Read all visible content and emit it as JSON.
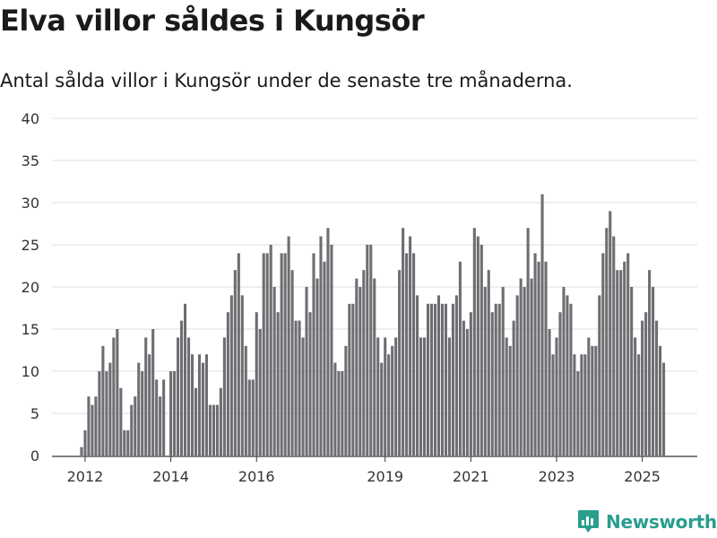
{
  "title": "Elva villor såldes i Kungsör",
  "subtitle": "Antal sålda villor i Kungsör under de senaste tre månaderna.",
  "brand": "Newsworthy",
  "chart_data": {
    "type": "bar",
    "title": "Elva villor såldes i Kungsör",
    "subtitle": "Antal sålda villor i Kungsör under de senaste tre månaderna.",
    "xlabel": "",
    "ylabel": "",
    "ylim": [
      0,
      40
    ],
    "yticks": [
      0,
      5,
      10,
      15,
      20,
      25,
      30,
      35,
      40
    ],
    "xticks": [
      {
        "label": "2012",
        "index": 2
      },
      {
        "label": "2014",
        "index": 26
      },
      {
        "label": "2016",
        "index": 50
      },
      {
        "label": "2019",
        "index": 86
      },
      {
        "label": "2021",
        "index": 110
      },
      {
        "label": "2023",
        "index": 134
      },
      {
        "label": "2025",
        "index": 158
      }
    ],
    "grid": true,
    "colors": {
      "bar": "#6e6d72",
      "highlight": "#2a9d8f"
    },
    "highlight_index": 165,
    "highlight_label": "11",
    "values": [
      0,
      1,
      3,
      7,
      6,
      7,
      10,
      13,
      10,
      11,
      14,
      15,
      8,
      3,
      3,
      6,
      7,
      11,
      10,
      14,
      12,
      15,
      9,
      7,
      9,
      0,
      10,
      10,
      14,
      16,
      18,
      14,
      12,
      8,
      12,
      11,
      12,
      6,
      6,
      6,
      8,
      14,
      17,
      19,
      22,
      24,
      19,
      13,
      9,
      9,
      17,
      15,
      24,
      24,
      25,
      20,
      17,
      24,
      24,
      26,
      22,
      16,
      16,
      14,
      20,
      17,
      24,
      21,
      26,
      23,
      27,
      25,
      11,
      10,
      10,
      13,
      18,
      18,
      21,
      20,
      22,
      25,
      25,
      21,
      14,
      11,
      14,
      12,
      13,
      14,
      22,
      27,
      24,
      26,
      24,
      19,
      14,
      14,
      18,
      18,
      18,
      19,
      18,
      18,
      14,
      18,
      19,
      23,
      16,
      15,
      17,
      27,
      26,
      25,
      20,
      22,
      17,
      18,
      18,
      20,
      14,
      13,
      16,
      19,
      21,
      20,
      27,
      21,
      24,
      23,
      31,
      23,
      15,
      12,
      14,
      17,
      20,
      19,
      18,
      12,
      10,
      12,
      12,
      14,
      13,
      13,
      19,
      24,
      27,
      29,
      26,
      22,
      22,
      23,
      24,
      20,
      14,
      12,
      16,
      17,
      22,
      20,
      16,
      13,
      11
    ]
  }
}
